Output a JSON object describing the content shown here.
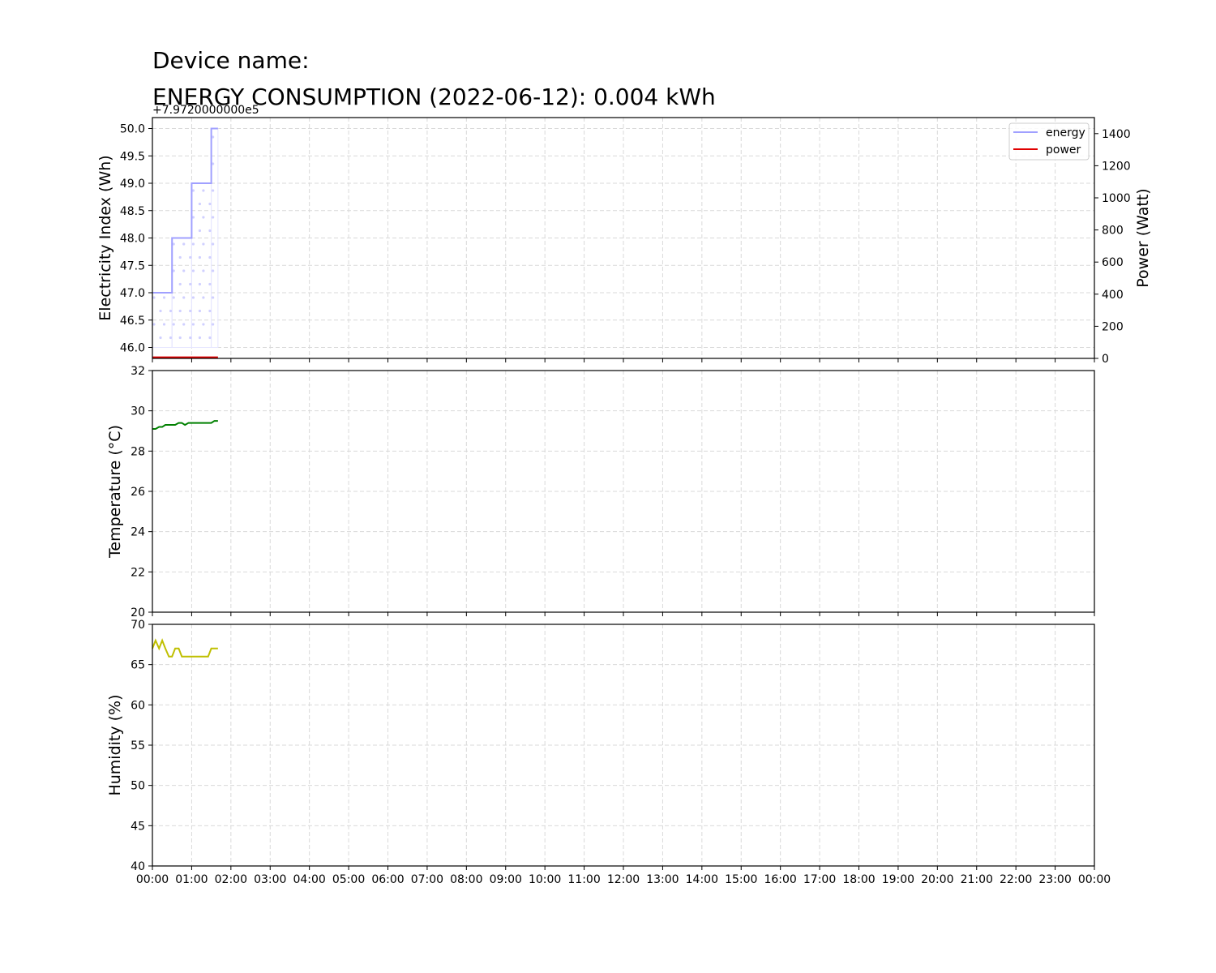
{
  "header": {
    "device_label": "Device name:",
    "consumption_title": "ENERGY CONSUMPTION (2022-06-12): 0.004 kWh"
  },
  "x_axis": {
    "tick_labels": [
      "00:00",
      "01:00",
      "02:00",
      "03:00",
      "04:00",
      "05:00",
      "06:00",
      "07:00",
      "08:00",
      "09:00",
      "10:00",
      "11:00",
      "12:00",
      "13:00",
      "14:00",
      "15:00",
      "16:00",
      "17:00",
      "18:00",
      "19:00",
      "20:00",
      "21:00",
      "22:00",
      "23:00",
      "00:00"
    ]
  },
  "chart_data": [
    {
      "type": "line",
      "title": "",
      "offset_label": "+7.9720000000e5",
      "x_unit": "hours",
      "xlim": [
        0,
        24
      ],
      "grid": true,
      "legend_position": "upper-right",
      "y_axis_left": {
        "label": "Electricity Index (Wh)",
        "lim": [
          45.8,
          50.2
        ],
        "ticks": [
          46.0,
          46.5,
          47.0,
          47.5,
          48.0,
          48.5,
          49.0,
          49.5,
          50.0
        ],
        "tick_labels": [
          "46.0",
          "46.5",
          "47.0",
          "47.5",
          "48.0",
          "48.5",
          "49.0",
          "49.5",
          "50.0"
        ]
      },
      "y_axis_right": {
        "label": "Power (Watt)",
        "lim": [
          0,
          1500
        ],
        "ticks": [
          0,
          200,
          400,
          600,
          800,
          1000,
          1200,
          1400
        ],
        "tick_labels": [
          "0",
          "200",
          "400",
          "600",
          "800",
          "1000",
          "1200",
          "1400"
        ]
      },
      "series": [
        {
          "name": "energy",
          "color": "#a0a0ff",
          "step": true,
          "hatch": "dots",
          "x": [
            0,
            0.5,
            0.5,
            1.0,
            1.0,
            1.5,
            1.5,
            1.67
          ],
          "y": [
            47,
            47,
            48,
            48,
            49,
            49,
            50,
            50
          ]
        },
        {
          "name": "power",
          "color": "#e00000",
          "x": [
            0,
            1.67
          ],
          "y": [
            2,
            2
          ]
        }
      ]
    },
    {
      "type": "line",
      "xlim": [
        0,
        24
      ],
      "grid": true,
      "y_axis_left": {
        "label": "Temperature ($^{\\circ}$C)",
        "lim": [
          20,
          32
        ],
        "ticks": [
          20,
          22,
          24,
          26,
          28,
          30,
          32
        ],
        "tick_labels": [
          "20",
          "22",
          "24",
          "26",
          "28",
          "30",
          "32"
        ]
      },
      "series": [
        {
          "color": "#008000",
          "x": [
            0,
            0.08,
            0.17,
            0.25,
            0.33,
            0.42,
            0.5,
            0.58,
            0.67,
            0.75,
            0.83,
            0.92,
            1.0,
            1.08,
            1.17,
            1.25,
            1.33,
            1.42,
            1.5,
            1.58,
            1.67
          ],
          "y": [
            29.1,
            29.1,
            29.2,
            29.2,
            29.3,
            29.3,
            29.3,
            29.3,
            29.4,
            29.4,
            29.3,
            29.4,
            29.4,
            29.4,
            29.4,
            29.4,
            29.4,
            29.4,
            29.4,
            29.5,
            29.5
          ]
        }
      ]
    },
    {
      "type": "line",
      "xlim": [
        0,
        24
      ],
      "grid": true,
      "y_axis_left": {
        "label": "Humidity (%)",
        "lim": [
          40,
          70
        ],
        "ticks": [
          40,
          45,
          50,
          55,
          60,
          65,
          70
        ],
        "tick_labels": [
          "40",
          "45",
          "50",
          "55",
          "60",
          "65",
          "70"
        ]
      },
      "series": [
        {
          "color": "#bfbf00",
          "x": [
            0,
            0.08,
            0.17,
            0.25,
            0.33,
            0.42,
            0.5,
            0.58,
            0.67,
            0.75,
            0.83,
            0.92,
            1.0,
            1.08,
            1.17,
            1.25,
            1.33,
            1.42,
            1.5,
            1.58,
            1.67
          ],
          "y": [
            67,
            68,
            67,
            68,
            67,
            66,
            66,
            67,
            67,
            66,
            66,
            66,
            66,
            66,
            66,
            66,
            66,
            66,
            67,
            67,
            67
          ]
        }
      ]
    }
  ]
}
